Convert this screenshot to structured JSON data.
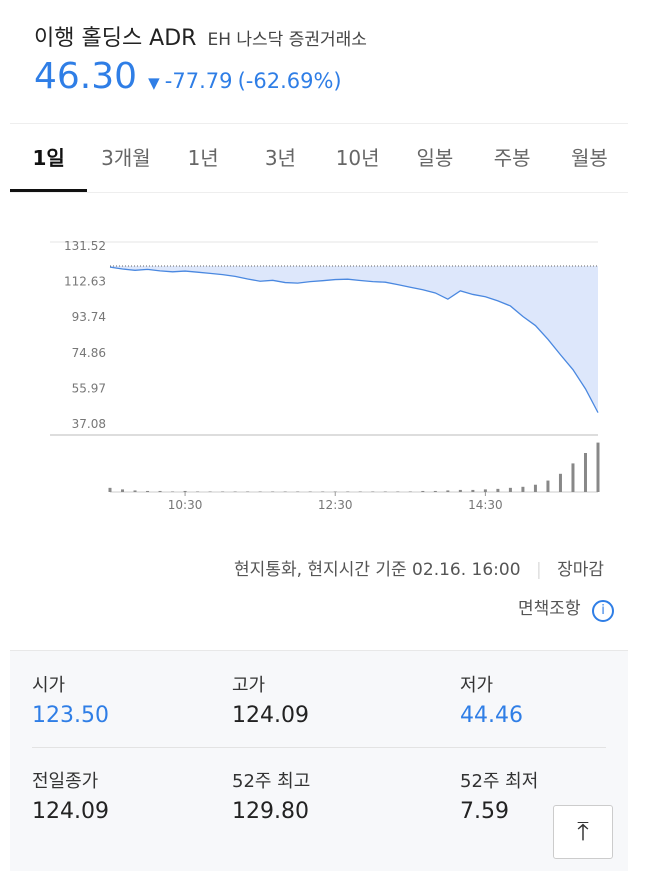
{
  "header": {
    "name": "이행 홀딩스 ADR",
    "exchange": "EH 나스닥 증권거래소",
    "price": "46.30",
    "change": "-77.79",
    "change_pct": "(-62.69%)",
    "color": "#2f7ee6"
  },
  "tabs": [
    "1일",
    "3개월",
    "1년",
    "3년",
    "10년",
    "일봉",
    "주봉",
    "월봉"
  ],
  "chart_data": {
    "type": "line",
    "color": "#4a88e0",
    "fill": "#dde7fb",
    "x": [
      "09:30",
      "09:40",
      "09:50",
      "10:00",
      "10:10",
      "10:20",
      "10:30",
      "10:40",
      "10:50",
      "11:00",
      "11:10",
      "11:20",
      "11:30",
      "11:40",
      "11:50",
      "12:00",
      "12:10",
      "12:20",
      "12:30",
      "12:40",
      "12:50",
      "13:00",
      "13:10",
      "13:20",
      "13:30",
      "13:40",
      "13:50",
      "14:00",
      "14:10",
      "14:20",
      "14:30",
      "14:40",
      "14:50",
      "15:00",
      "15:10",
      "15:20",
      "15:30",
      "15:40",
      "15:50",
      "16:00"
    ],
    "values": [
      123.5,
      122.5,
      121.8,
      122.3,
      121.5,
      121.0,
      121.4,
      120.8,
      120.2,
      119.5,
      118.6,
      117.2,
      116.0,
      116.5,
      115.3,
      115.0,
      115.8,
      116.3,
      116.9,
      117.1,
      116.4,
      115.8,
      115.5,
      114.2,
      112.8,
      111.5,
      109.8,
      106.5,
      110.9,
      109.0,
      107.8,
      105.6,
      102.9,
      97.3,
      92.5,
      85.2,
      77.0,
      69.1,
      58.9,
      46.3
    ],
    "reference": 124.09,
    "volume": [
      8,
      5,
      3,
      2,
      2,
      1,
      2,
      1,
      1,
      1,
      1,
      1,
      1,
      1,
      1,
      1,
      1,
      1,
      1,
      1,
      1,
      1,
      1,
      1,
      1,
      2,
      2,
      3,
      4,
      4,
      5,
      6,
      8,
      10,
      14,
      22,
      35,
      55,
      75,
      95
    ],
    "volume_color": "#888888",
    "volume_lim": [
      0,
      100
    ],
    "ylim": [
      37.08,
      131.52
    ],
    "yticks": [
      {
        "value": 131.52,
        "label": "131.52"
      },
      {
        "value": 112.63,
        "label": "112.63"
      },
      {
        "value": 93.74,
        "label": "93.74"
      },
      {
        "value": 74.86,
        "label": "74.86"
      },
      {
        "value": 55.97,
        "label": "55.97"
      },
      {
        "value": 37.08,
        "label": "37.08"
      }
    ],
    "xticks": [
      "10:30",
      "12:30",
      "14:30"
    ]
  },
  "footnote": {
    "basis": "현지통화, 현지시간 기준 02.16. 16:00",
    "status": "장마감",
    "disclaimer": "면책조항"
  },
  "stats": [
    [
      {
        "label": "시가",
        "value": "123.50",
        "color": "#2f7ee6"
      },
      {
        "label": "고가",
        "value": "124.09",
        "color": "#222222"
      },
      {
        "label": "저가",
        "value": "44.46",
        "color": "#2f7ee6"
      }
    ],
    [
      {
        "label": "전일종가",
        "value": "124.09",
        "color": "#222222"
      },
      {
        "label": "52주 최고",
        "value": "129.80",
        "color": "#222222"
      },
      {
        "label": "52주 최저",
        "value": "7.59",
        "color": "#222222"
      }
    ]
  ]
}
